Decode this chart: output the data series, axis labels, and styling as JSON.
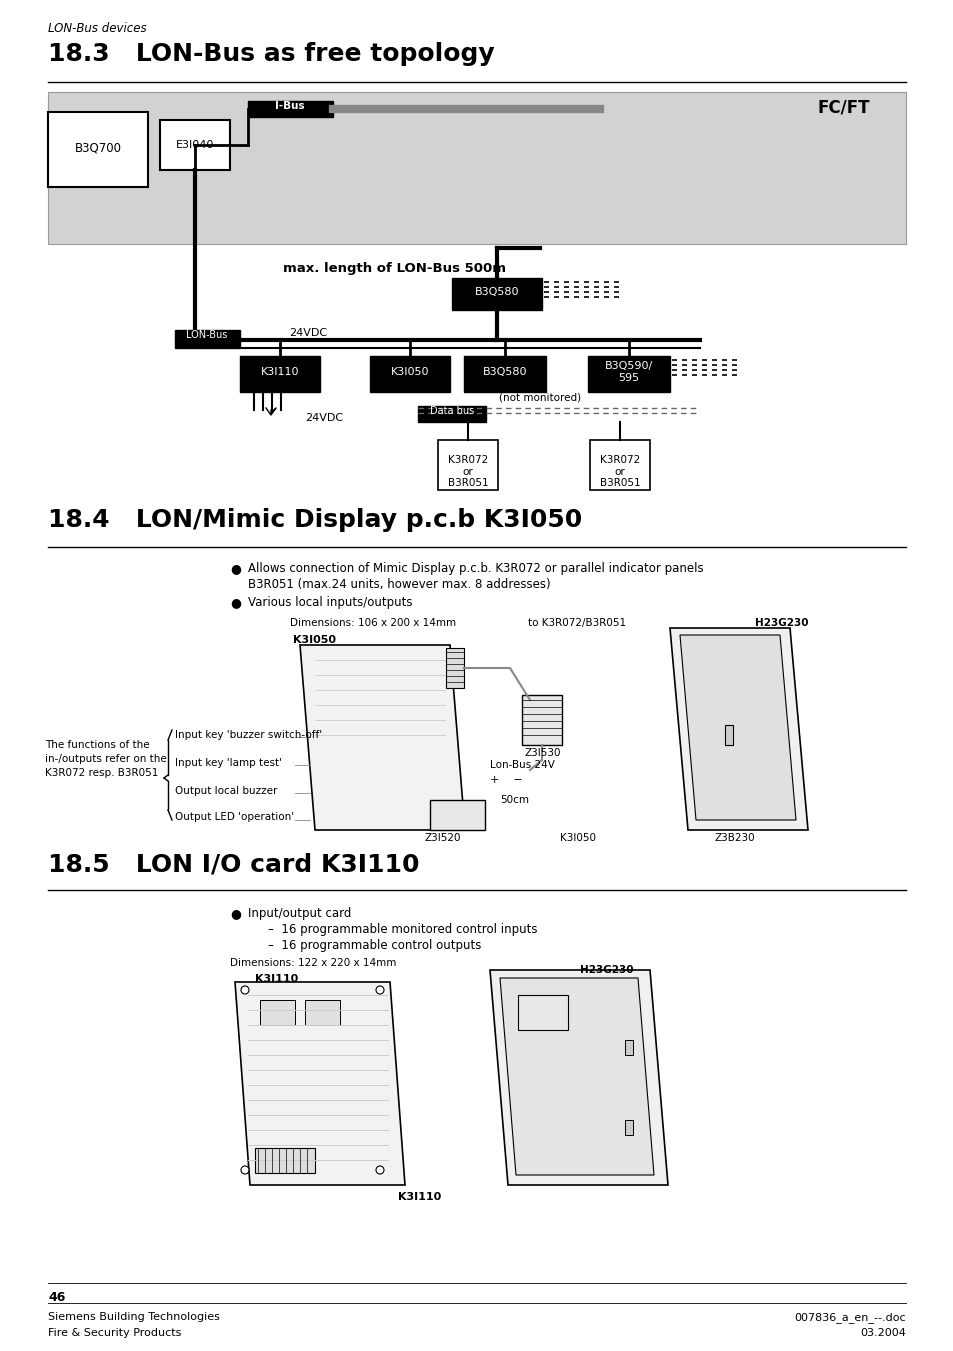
{
  "page_bg": "#ffffff",
  "header_italic": "LON-Bus devices",
  "section1_title": "18.3   LON-Bus as free topology",
  "section2_title": "18.4   LON/Mimic Display p.c.b K3I050",
  "section3_title": "18.5   LON I/O card K3I110",
  "footer_left1": "Siemens Building Technologies",
  "footer_left2": "Fire & Security Products",
  "footer_right1": "007836_a_en_--.doc",
  "footer_right2": "03.2004",
  "page_number": "46",
  "sec2_bullet1a": "Allows connection of Mimic Display p.c.b. K3R072 or parallel indicator panels",
  "sec2_bullet1b": "B3R051 (max.24 units, however max. 8 addresses)",
  "sec2_bullet2": "Various local inputs/outputs",
  "sec2_dim": "Dimensions: 106 x 200 x 14mm",
  "sec2_to": "to K3R072/B3R051",
  "sec2_z3i530": "Z3I530",
  "sec2_lonbus24v": "Lon-Bus 24V",
  "sec2_50cm": "50cm",
  "sec2_z3i520": "Z3I520",
  "sec2_k3i050a": "K3I050",
  "sec2_k3i050b": "K3I050",
  "sec2_z3b230": "Z3B230",
  "sec2_h23g230a": "H23G230",
  "sec2_funclabel1": "The functions of the",
  "sec2_funclabel2": "in-/outputs refer on the",
  "sec2_funclabel3": "K3R072 resp. B3R051",
  "sec2_input1": "Input key 'buzzer switch-off'",
  "sec2_input2": "Input key 'lamp test'",
  "sec2_output1": "Output local buzzer",
  "sec2_output2": "Output LED 'operation'",
  "sec3_bullet1": "Input/output card",
  "sec3_sub1": "16 programmable monitored control inputs",
  "sec3_sub2": "16 programmable control outputs",
  "sec3_dim": "Dimensions: 122 x 220 x 14mm",
  "sec3_k3i110a": "K3I110",
  "sec3_k3i110b": "K3I110",
  "sec3_h23g230": "H23G230",
  "diagram_fcft": "FC/FT",
  "diagram_ibus": "I-Bus",
  "diagram_b3q700": "B3Q700",
  "diagram_e3i040": "E3I040",
  "diagram_maxlen": "max. length of LON-Bus 500m",
  "diagram_b3q580a": "B3Q580",
  "diagram_lonbus": "LON-Bus",
  "diagram_24vdc1": "24VDC",
  "diagram_k3i110": "K3I110",
  "diagram_k3i050": "K3I050",
  "diagram_b3q580b": "B3Q580",
  "diagram_b3q590": "B3Q590/\n595",
  "diagram_notmon": "(not monitored)",
  "diagram_databus": "Data bus",
  "diagram_24vdc2": "24VDC",
  "diagram_k3r072a": "K3R072\nor\nB3R051",
  "diagram_k3r072b": "K3R072\nor\nB3R051"
}
